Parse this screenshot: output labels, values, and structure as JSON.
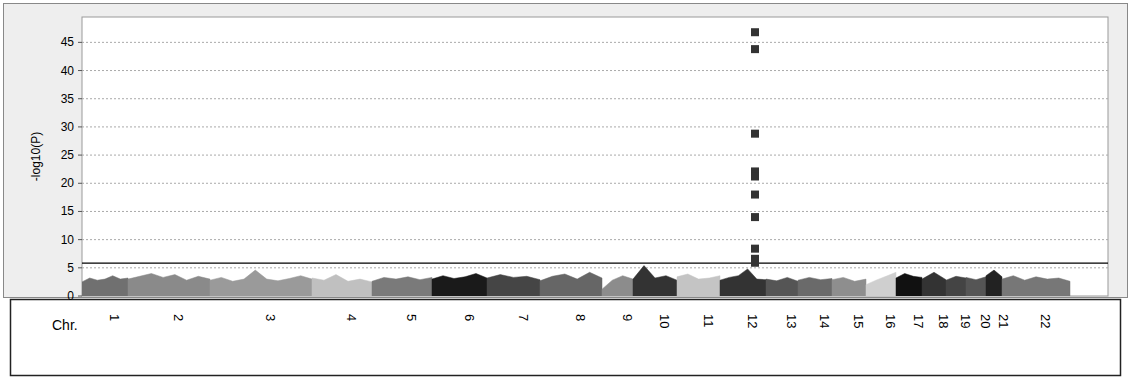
{
  "chart_data": {
    "type": "manhattan",
    "y_label": "-log10(P)",
    "x_label": "Chr.",
    "ylim": [
      0,
      49.5
    ],
    "yticks": [
      0,
      5,
      10,
      15,
      20,
      25,
      30,
      35,
      40,
      45
    ],
    "xlim": [
      0,
      1026
    ],
    "grid": true,
    "threshold": 5.85,
    "series": [
      {
        "name": "1",
        "color": "#707070",
        "start": 0,
        "end": 46,
        "values": [
          2.5,
          3.2,
          2.8,
          3.0,
          3.6,
          3.0,
          3.2
        ]
      },
      {
        "name": "2",
        "color": "#8a8a8a",
        "start": 46,
        "end": 128,
        "values": [
          3.0,
          3.5,
          4.0,
          3.3,
          3.8,
          2.8,
          3.5,
          3.0
        ]
      },
      {
        "name": "3",
        "color": "#9a9a9a",
        "start": 128,
        "end": 230,
        "values": [
          2.8,
          3.3,
          2.6,
          3.0,
          4.6,
          3.0,
          2.7,
          3.1,
          3.6,
          3.0
        ]
      },
      {
        "name": "4",
        "color": "#c0c0c0",
        "start": 230,
        "end": 290,
        "values": [
          3.2,
          2.8,
          3.8,
          2.6,
          3.0,
          2.5
        ]
      },
      {
        "name": "5",
        "color": "#7a7a7a",
        "start": 290,
        "end": 350,
        "values": [
          2.6,
          3.3,
          3.0,
          3.4,
          2.9,
          3.3
        ]
      },
      {
        "name": "6",
        "color": "#1a1a1a",
        "start": 350,
        "end": 405,
        "values": [
          3.0,
          3.6,
          3.1,
          3.4,
          4.0,
          3.2
        ]
      },
      {
        "name": "7",
        "color": "#454545",
        "start": 405,
        "end": 458,
        "values": [
          3.2,
          3.8,
          3.3,
          3.5,
          2.9
        ]
      },
      {
        "name": "8",
        "color": "#666666",
        "start": 458,
        "end": 520,
        "values": [
          2.7,
          3.5,
          3.9,
          3.0,
          4.2,
          3.2
        ]
      },
      {
        "name": "9",
        "color": "#8c8c8c",
        "start": 520,
        "end": 551,
        "values": [
          1.2,
          2.8,
          3.6,
          3.0
        ]
      },
      {
        "name": "10",
        "color": "#333333",
        "start": 551,
        "end": 595,
        "values": [
          3.0,
          5.4,
          3.2,
          3.6,
          2.8
        ]
      },
      {
        "name": "11",
        "color": "#c4c4c4",
        "start": 595,
        "end": 638,
        "values": [
          3.4,
          3.9,
          3.0,
          3.2,
          3.6
        ]
      },
      {
        "name": "12",
        "color": "#333333",
        "start": 638,
        "end": 684,
        "values": [
          2.8,
          3.3,
          3.6,
          4.8,
          3.0,
          2.9
        ]
      },
      {
        "name": "13",
        "color": "#555555",
        "start": 684,
        "end": 716,
        "values": [
          3.0,
          2.7,
          3.3,
          2.6
        ]
      },
      {
        "name": "14",
        "color": "#6a6a6a",
        "start": 716,
        "end": 750,
        "values": [
          2.8,
          3.3,
          2.9,
          3.1
        ]
      },
      {
        "name": "15",
        "color": "#8e8e8e",
        "start": 750,
        "end": 784,
        "values": [
          2.9,
          3.3,
          2.6,
          3.0
        ]
      },
      {
        "name": "16",
        "color": "#cfcfcf",
        "start": 784,
        "end": 814,
        "values": [
          2.0,
          2.8,
          3.5,
          4.2
        ]
      },
      {
        "name": "17",
        "color": "#111111",
        "start": 814,
        "end": 840,
        "values": [
          3.2,
          4.0,
          3.5,
          3.3
        ]
      },
      {
        "name": "18",
        "color": "#333333",
        "start": 840,
        "end": 864,
        "values": [
          3.0,
          4.2,
          2.9
        ]
      },
      {
        "name": "19",
        "color": "#444444",
        "start": 864,
        "end": 884,
        "values": [
          2.8,
          3.5,
          3.2
        ]
      },
      {
        "name": "20",
        "color": "#555555",
        "start": 884,
        "end": 904,
        "values": [
          3.3,
          2.9,
          3.4
        ]
      },
      {
        "name": "21",
        "color": "#222222",
        "start": 904,
        "end": 920,
        "values": [
          3.6,
          4.6,
          3.4
        ]
      },
      {
        "name": "22",
        "color": "#777777",
        "start": 920,
        "end": 988,
        "values": [
          3.0,
          3.6,
          2.8,
          3.4,
          3.0,
          3.2,
          2.6
        ]
      }
    ],
    "points": {
      "marker": "square",
      "color": "#333333",
      "x": [
        673,
        673,
        673,
        673,
        673,
        673,
        673,
        673,
        673,
        673,
        673
      ],
      "values": [
        46.8,
        43.8,
        28.8,
        22.1,
        21.2,
        18.0,
        14.0,
        8.4,
        6.6,
        6.2,
        5.9
      ]
    }
  }
}
